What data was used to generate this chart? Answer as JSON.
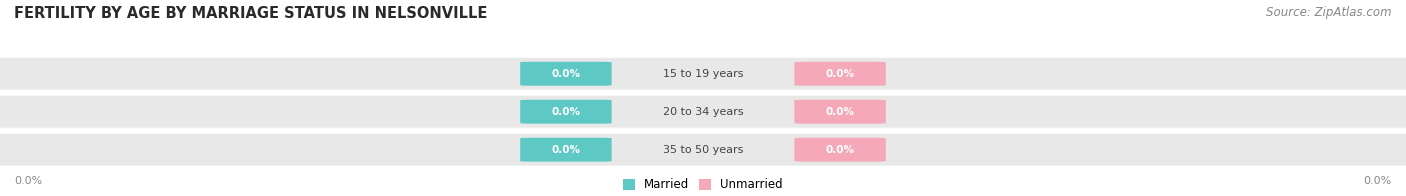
{
  "title": "FERTILITY BY AGE BY MARRIAGE STATUS IN NELSONVILLE",
  "source": "Source: ZipAtlas.com",
  "categories": [
    "15 to 19 years",
    "20 to 34 years",
    "35 to 50 years"
  ],
  "married_values": [
    0.0,
    0.0,
    0.0
  ],
  "unmarried_values": [
    0.0,
    0.0,
    0.0
  ],
  "married_color": "#5DC8C4",
  "unmarried_color": "#F4A8B8",
  "bar_bg_color": "#E8E8E8",
  "bar_bg_color2": "#F0F0F0",
  "bar_label_married": "Married",
  "bar_label_unmarried": "Unmarried",
  "title_fontsize": 10.5,
  "source_fontsize": 8.5,
  "figsize": [
    14.06,
    1.96
  ],
  "dpi": 100,
  "background_color": "#FFFFFF",
  "label_color": "#FFFFFF",
  "category_label_color": "#444444",
  "axis_label_color": "#888888",
  "left_pct_label": "0.0%",
  "right_pct_label": "0.0%"
}
